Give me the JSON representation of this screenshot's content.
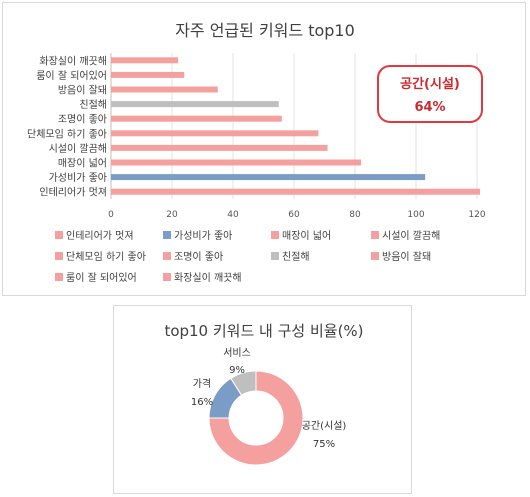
{
  "chart_data": [
    {
      "type": "bar",
      "orientation": "horizontal",
      "title": "자주 언급된 키워드 top10",
      "categories": [
        "인테리어가 멋져",
        "가성비가 좋아",
        "매장이 넓어",
        "시설이 깔끔해",
        "단체모임 하기 좋아",
        "조명이 좋아",
        "친절해",
        "방음이 잘돼",
        "룸이 잘 되어있어",
        "화장실이 깨끗해"
      ],
      "values": [
        121,
        103,
        82,
        71,
        68,
        56,
        55,
        35,
        24,
        22
      ],
      "colors": [
        "#f4a09e",
        "#7a9cc6",
        "#f4a09e",
        "#f4a09e",
        "#f4a09e",
        "#f4a09e",
        "#bfbfbf",
        "#f4a09e",
        "#f4a09e",
        "#f4a09e"
      ],
      "xlim": [
        0,
        120
      ],
      "xticks": [
        "0",
        "20",
        "40",
        "60",
        "80",
        "100",
        "120"
      ],
      "grid": true,
      "legend_position": "bottom",
      "callout": {
        "label": "공간(시설)",
        "value": "64%",
        "border_color": "#e0393e",
        "text_color": "#cc2a2f"
      }
    },
    {
      "type": "pie",
      "style": "donut",
      "title": "top10 키워드 내 구성 비율(%)",
      "slices": [
        {
          "label": "공간(시설)",
          "value": 75,
          "value_label": "75%",
          "color": "#f4a09e"
        },
        {
          "label": "가격",
          "value": 16,
          "value_label": "16%",
          "color": "#7a9cc6"
        },
        {
          "label": "서비스",
          "value": 9,
          "value_label": "9%",
          "color": "#bfbfbf"
        }
      ]
    }
  ]
}
